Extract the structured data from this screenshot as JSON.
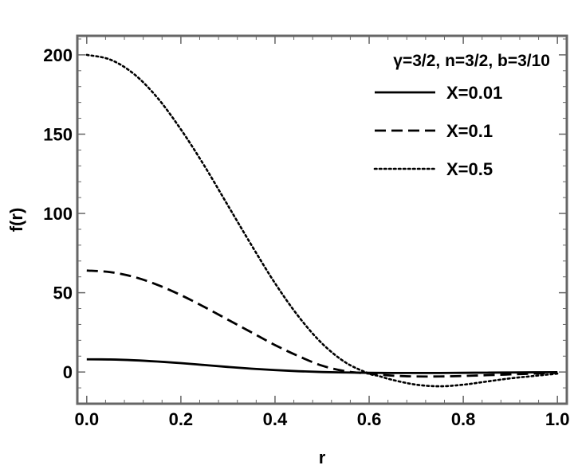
{
  "chart_data": {
    "type": "line",
    "xlabel": "r",
    "ylabel": "f(r)",
    "xlim": [
      -0.02,
      1.02
    ],
    "ylim": [
      -20,
      212
    ],
    "x_ticks": [
      0.0,
      0.2,
      0.4,
      0.6,
      0.8,
      1.0
    ],
    "x_tick_labels": [
      "0.0",
      "0.2",
      "0.4",
      "0.6",
      "0.8",
      "1.0"
    ],
    "y_ticks": [
      0,
      50,
      100,
      150,
      200
    ],
    "y_tick_labels": [
      "0",
      "50",
      "100",
      "150",
      "200"
    ],
    "grid": false,
    "legend_placement": "top-right",
    "legend_title": "γ=3/2, n=3/2, b=3/10",
    "series": [
      {
        "name": "X=0.01",
        "style": "solid",
        "x": [
          0.0,
          0.05,
          0.1,
          0.15,
          0.2,
          0.25,
          0.3,
          0.35,
          0.4,
          0.45,
          0.5,
          0.55,
          0.6,
          0.65,
          0.7,
          0.75,
          0.8,
          0.85,
          0.9,
          0.95,
          1.0
        ],
        "y": [
          8.0,
          7.9,
          7.4,
          6.6,
          5.6,
          4.4,
          3.2,
          2.1,
          1.2,
          0.5,
          0.0,
          -0.3,
          -0.5,
          -0.6,
          -0.6,
          -0.6,
          -0.5,
          -0.4,
          -0.3,
          -0.2,
          -0.1
        ]
      },
      {
        "name": "X=0.1",
        "style": "dashed",
        "x": [
          0.0,
          0.05,
          0.1,
          0.15,
          0.2,
          0.25,
          0.3,
          0.35,
          0.4,
          0.45,
          0.5,
          0.55,
          0.6,
          0.65,
          0.7,
          0.75,
          0.8,
          0.85,
          0.9,
          0.95,
          1.0
        ],
        "y": [
          64.0,
          63.0,
          60.0,
          55.0,
          48.5,
          41.0,
          33.0,
          25.0,
          17.0,
          10.0,
          4.0,
          0.5,
          -1.0,
          -2.3,
          -2.8,
          -2.8,
          -2.5,
          -2.0,
          -1.5,
          -1.0,
          -0.5
        ]
      },
      {
        "name": "X=0.5",
        "style": "dotted",
        "x": [
          0.0,
          0.05,
          0.1,
          0.15,
          0.2,
          0.25,
          0.3,
          0.35,
          0.4,
          0.45,
          0.5,
          0.55,
          0.6,
          0.62,
          0.65,
          0.7,
          0.75,
          0.8,
          0.85,
          0.9,
          0.95,
          1.0
        ],
        "y": [
          200.0,
          197.0,
          188.0,
          173.0,
          153.0,
          130.0,
          105.0,
          80.0,
          56.0,
          35.0,
          18.0,
          6.0,
          -1.0,
          -2.5,
          -5.0,
          -8.0,
          -9.0,
          -8.0,
          -6.0,
          -4.0,
          -2.5,
          -1.0
        ]
      }
    ]
  }
}
